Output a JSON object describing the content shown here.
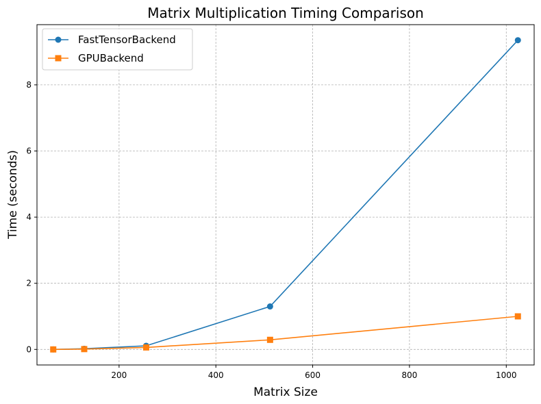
{
  "chart_data": {
    "type": "line",
    "title": "Matrix Multiplication Timing Comparison",
    "xlabel": "Matrix Size",
    "ylabel": "Time (seconds)",
    "x": [
      64,
      128,
      256,
      512,
      1024
    ],
    "series": [
      {
        "name": "FastTensorBackend",
        "values": [
          0.0,
          0.02,
          0.11,
          1.3,
          9.35
        ],
        "color": "#1f77b4",
        "marker": "circle"
      },
      {
        "name": "GPUBackend",
        "values": [
          0.0,
          0.01,
          0.06,
          0.29,
          1.0
        ],
        "color": "#ff7f0e",
        "marker": "square"
      }
    ],
    "xlim": [
      30.4,
      1057.6
    ],
    "ylim": [
      -0.47,
      9.82
    ],
    "xticks": [
      200,
      400,
      600,
      800,
      1000
    ],
    "yticks": [
      0,
      2,
      4,
      6,
      8
    ],
    "grid": true,
    "legend_position": "top-left"
  }
}
